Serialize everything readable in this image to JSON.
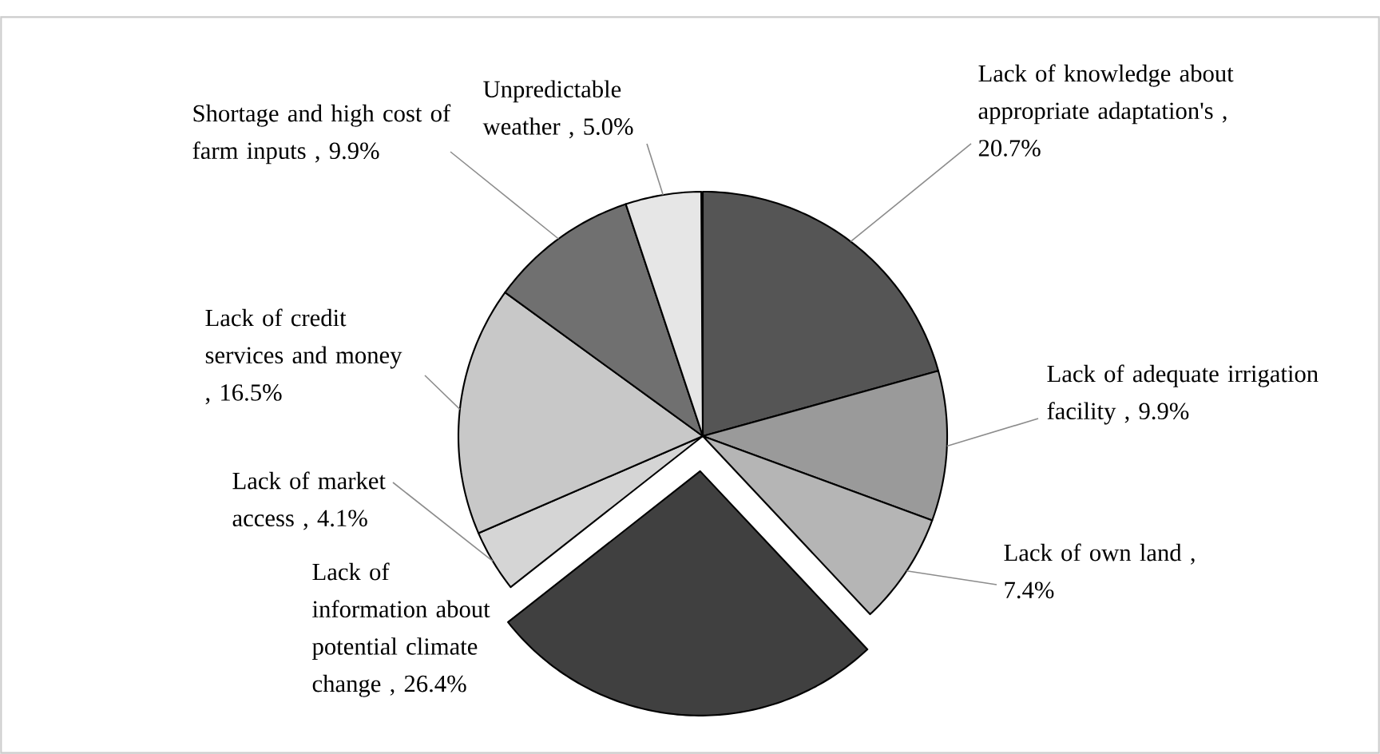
{
  "chart_data": {
    "type": "pie",
    "categories": [
      "Lack of knowledge about appropriate adaptation's",
      "Lack of adequate irrigation facility",
      "Lack of own land",
      "Lack of information about potential climate change",
      "Lack of market access",
      "Lack of credit services and money",
      "Shortage and high cost of farm inputs",
      "Unpredictable weather"
    ],
    "values": [
      20.7,
      9.9,
      7.4,
      26.4,
      4.1,
      16.5,
      9.9,
      5.0
    ],
    "colors": [
      "#555555",
      "#9a9a9a",
      "#b5b5b5",
      "#404040",
      "#d5d5d5",
      "#c8c8c8",
      "#707070",
      "#e6e6e6"
    ],
    "value_labels": [
      ", 20.7%",
      ", 9.9%",
      ", 7.4%",
      ", 26.4%",
      ", 4.1%",
      ", 16.5%",
      ", 9.9%",
      ", 5.0%"
    ]
  }
}
